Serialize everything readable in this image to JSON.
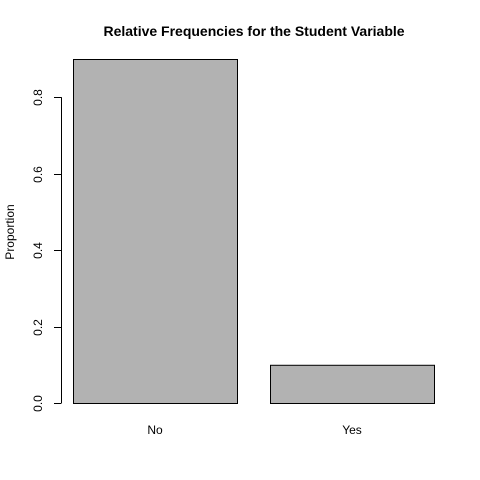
{
  "chart_data": {
    "type": "bar",
    "title": "Relative Frequencies for the Student Variable",
    "xlabel": "",
    "ylabel": "Proportion",
    "categories": [
      "No",
      "Yes"
    ],
    "values": [
      0.9,
      0.1
    ],
    "ylim": [
      0,
      0.9
    ],
    "yticks": [
      0.0,
      0.2,
      0.4,
      0.6,
      0.8
    ],
    "ytick_labels": [
      "0.0",
      "0.2",
      "0.4",
      "0.6",
      "0.8"
    ],
    "bar_color": "#b2b2b2",
    "bar_edge_color": "#000000",
    "grid": false,
    "legend": "none"
  }
}
